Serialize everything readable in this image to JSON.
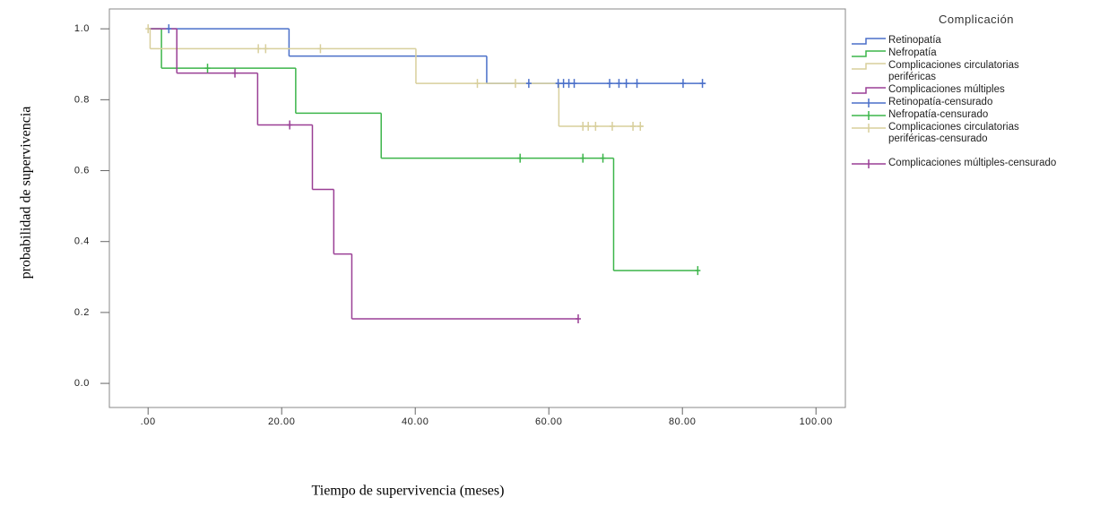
{
  "chart_data": {
    "type": "kaplan-meier",
    "x_label": "Tiempo de supervivencia (meses)",
    "y_label": "probabilidad de supervivencia",
    "legend_title": "Complicación",
    "xlim": [
      -5.8,
      104.4
    ],
    "ylim": [
      -0.068,
      1.056
    ],
    "xticks": [
      {
        "value": 0,
        "label": ".00"
      },
      {
        "value": 20,
        "label": "20.00"
      },
      {
        "value": 40,
        "label": "40.00"
      },
      {
        "value": 60,
        "label": "60.00"
      },
      {
        "value": 80,
        "label": "80.00"
      },
      {
        "value": 100,
        "label": "100.00"
      }
    ],
    "yticks": [
      {
        "value": 0,
        "label": "0.0"
      },
      {
        "value": 0.2,
        "label": "0.2"
      },
      {
        "value": 0.4,
        "label": "0.4"
      },
      {
        "value": 0.6,
        "label": "0.6"
      },
      {
        "value": 0.8,
        "label": "0.8"
      },
      {
        "value": 1.0,
        "label": "1.0"
      }
    ],
    "series": [
      {
        "name": "Retinopatía",
        "type": "step",
        "color": "#4a6fc9",
        "x": [
          0,
          21.1,
          50.7,
          83.5
        ],
        "values": [
          1.0,
          0.923,
          0.846,
          0.846
        ]
      },
      {
        "name": "Nefropatía",
        "type": "step",
        "color": "#3cb54a",
        "x": [
          0,
          2.0,
          22.1,
          34.9,
          69.7,
          82.3
        ],
        "values": [
          1.0,
          0.889,
          0.762,
          0.635,
          0.318,
          0.318
        ]
      },
      {
        "name": "Complicaciones circulatorias periféricas",
        "type": "step",
        "color": "#d8cf9c",
        "x": [
          0,
          0.3,
          40.1,
          61.5,
          74.2
        ],
        "values": [
          1.0,
          0.944,
          0.846,
          0.725,
          0.725
        ]
      },
      {
        "name": "Complicaciones múltiples",
        "type": "step",
        "color": "#9a3f95",
        "x": [
          0,
          4.3,
          16.4,
          24.6,
          27.8,
          30.5,
          64.4
        ],
        "values": [
          1.0,
          0.875,
          0.729,
          0.547,
          0.365,
          0.182,
          0.182
        ]
      },
      {
        "name": "Retinopatía-censurado",
        "type": "censored",
        "color": "#4a6fc9",
        "x": [
          3.1,
          57.0,
          61.4,
          62.2,
          63.0,
          63.8,
          69.1,
          70.5,
          71.6,
          73.2,
          80.1,
          83.0
        ],
        "values": [
          1.0,
          0.846,
          0.846,
          0.846,
          0.846,
          0.846,
          0.846,
          0.846,
          0.846,
          0.846,
          0.846,
          0.846
        ]
      },
      {
        "name": "Nefropatía-censurado",
        "type": "censored",
        "color": "#3cb54a",
        "x": [
          8.9,
          55.7,
          65.1,
          68.1,
          82.3
        ],
        "values": [
          0.889,
          0.635,
          0.635,
          0.635,
          0.318
        ]
      },
      {
        "name": "Complicaciones circulatorias periféricas-censurado",
        "type": "censored",
        "color": "#d8cf9c",
        "x": [
          0,
          16.5,
          17.6,
          25.8,
          49.3,
          55.0,
          65.1,
          65.9,
          67.0,
          69.5,
          72.6,
          73.7
        ],
        "values": [
          1.0,
          0.944,
          0.944,
          0.944,
          0.846,
          0.846,
          0.725,
          0.725,
          0.725,
          0.725,
          0.725,
          0.725
        ]
      },
      {
        "name": "Complicaciones múltiples-censurado",
        "type": "censored",
        "color": "#9a3f95",
        "x": [
          13.0,
          21.2,
          64.4
        ],
        "values": [
          0.875,
          0.729,
          0.182
        ]
      }
    ]
  }
}
